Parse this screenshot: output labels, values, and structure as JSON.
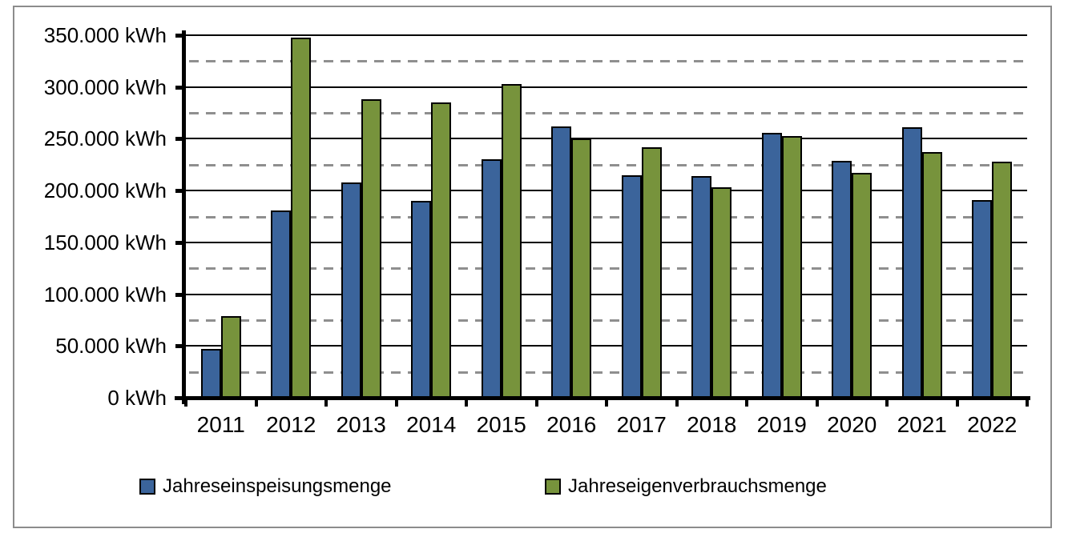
{
  "chart_data": {
    "type": "bar",
    "title": "",
    "xlabel": "",
    "ylabel": "",
    "categories": [
      "2011",
      "2012",
      "2013",
      "2014",
      "2015",
      "2016",
      "2017",
      "2018",
      "2019",
      "2020",
      "2021",
      "2022"
    ],
    "series": [
      {
        "name": "Jahreseinspeisungsmenge",
        "color": "#3B649B",
        "values": [
          47000,
          181000,
          208000,
          190000,
          230000,
          262000,
          215000,
          214000,
          256000,
          229000,
          261000,
          191000
        ]
      },
      {
        "name": "Jahreseigenverbrauchsmenge",
        "color": "#77933C",
        "values": [
          79000,
          348000,
          288000,
          285000,
          303000,
          250000,
          242000,
          203000,
          253000,
          217000,
          237000,
          228000
        ]
      }
    ],
    "ylim": [
      0,
      350000
    ],
    "y_major_step": 50000,
    "y_minor_step": 25000,
    "y_tick_labels": [
      "0 kWh",
      "50.000 kWh",
      "100.000 kWh",
      "150.000 kWh",
      "200.000 kWh",
      "250.000 kWh",
      "300.000 kWh",
      "350.000 kWh"
    ],
    "grid": {
      "major_style": "solid",
      "major_color": "#000000",
      "minor_style": "dashed",
      "minor_color": "#8f8f8f"
    },
    "legend_position": "bottom",
    "axis_color": "#000000",
    "frame_color": "#8c8c8c",
    "unit": "kWh"
  }
}
